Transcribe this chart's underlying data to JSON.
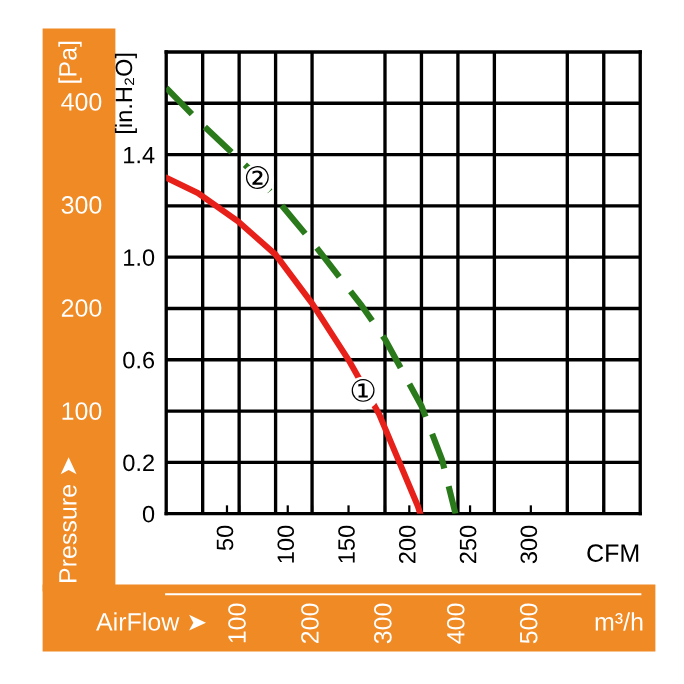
{
  "chart_data": {
    "type": "line",
    "ylabel": "[in.H₂O]",
    "xlabel": "CFM",
    "y2label": "Pressure ➤",
    "x2label": "AirFlow ➤",
    "annotations": [
      {
        "text": "①",
        "x": 162,
        "y": 0.47
      },
      {
        "text": "②",
        "x": 75,
        "y": 1.3
      },
      "[Pa]",
      "m³/h"
    ],
    "series": [
      {
        "color": "#e8201a",
        "line_style": "solid",
        "x": [
          0,
          26,
          59,
          90,
          120,
          150,
          175,
          191,
          207,
          209
        ],
        "values": [
          1.31,
          1.25,
          1.14,
          1.01,
          0.82,
          0.6,
          0.39,
          0.21,
          0.03,
          0
        ]
      },
      {
        "color": "#2a7a1c",
        "line_style": "dashed",
        "x": [
          0,
          29,
          76,
          120,
          161,
          180,
          210,
          227,
          238
        ],
        "values": [
          1.66,
          1.52,
          1.31,
          1.06,
          0.81,
          0.68,
          0.42,
          0.21,
          0
        ]
      }
    ],
    "xlim": [
      0,
      390
    ],
    "xticks": [
      {
        "value": 30,
        "label": null
      },
      50,
      {
        "value": 60,
        "label": null
      },
      {
        "value": 90,
        "label": null
      },
      100,
      {
        "value": 120,
        "label": null
      },
      150,
      {
        "value": 180,
        "label": null
      },
      200,
      {
        "value": 210,
        "label": null
      },
      {
        "value": 240,
        "label": null
      },
      250,
      {
        "value": 270,
        "label": null
      },
      300,
      {
        "value": 330,
        "label": null
      },
      {
        "value": 360,
        "label": null
      }
    ],
    "ylim": [
      0,
      1.8
    ],
    "yticks": [
      0,
      0.2,
      {
        "value": 0.4,
        "label": null
      },
      0.6,
      {
        "value": 0.8,
        "label": null
      },
      {
        "value": 1,
        "label": "1.0"
      },
      {
        "value": 1.2,
        "label": null
      },
      1.4,
      {
        "value": 1.6,
        "label": null
      }
    ],
    "y2lim": [
      0,
      448
    ],
    "y2ticks": [
      100,
      200,
      300,
      400
    ],
    "x2lim": [
      0,
      650
    ],
    "x2ticks": [
      100,
      200,
      300,
      400,
      500
    ],
    "grid": true,
    "legend": false,
    "marker": "none"
  }
}
